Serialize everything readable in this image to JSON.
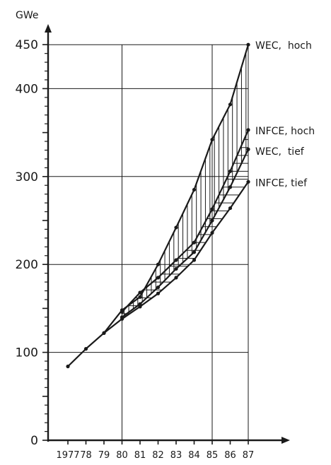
{
  "chart_data": {
    "type": "line",
    "ylabel": "GWe",
    "xlabel": "",
    "x": [
      1977,
      1978,
      1979,
      1980,
      1981,
      1982,
      1983,
      1984,
      1985,
      1986,
      1987
    ],
    "x_tick_labels": [
      "1977",
      "78",
      "79",
      "80",
      "81",
      "82",
      "83",
      "84",
      "85",
      "86",
      "87"
    ],
    "y_ticks": [
      0,
      100,
      200,
      300,
      400,
      450
    ],
    "y_tick_labels": [
      "0",
      "100",
      "200",
      "300",
      "400",
      "450"
    ],
    "ylim": [
      0,
      450
    ],
    "xlim": [
      1977,
      1987
    ],
    "grid_y": [
      100,
      200,
      300,
      400,
      450
    ],
    "grid_x": [
      1980,
      1985,
      1987
    ],
    "series": [
      {
        "name": "WEC,  hoch",
        "x": [
          1977,
          1978,
          1979,
          1980,
          1981,
          1982,
          1983,
          1984,
          1985,
          1986,
          1987
        ],
        "values": [
          84,
          104,
          122,
          148,
          163,
          200,
          242,
          285,
          342,
          382,
          450
        ]
      },
      {
        "name": "INFCE, hoch",
        "x": [
          1980,
          1981,
          1982,
          1983,
          1984,
          1985,
          1986,
          1987
        ],
        "values": [
          146,
          168,
          185,
          205,
          225,
          263,
          306,
          353
        ]
      },
      {
        "name": "WEC,  tief",
        "x": [
          1980,
          1981,
          1982,
          1983,
          1984,
          1985,
          1986,
          1987
        ],
        "values": [
          140,
          155,
          174,
          195,
          214,
          250,
          288,
          331
        ]
      },
      {
        "name": "INFCE, tief",
        "x": [
          1979,
          1980,
          1981,
          1982,
          1983,
          1984,
          1985,
          1986,
          1987
        ],
        "values": [
          122,
          138,
          152,
          167,
          185,
          205,
          236,
          264,
          294
        ]
      }
    ],
    "shading": [
      {
        "between": [
          "WEC,  hoch",
          "WEC,  tief"
        ],
        "style": "vertical-hatch"
      },
      {
        "between": [
          "INFCE, hoch",
          "INFCE, tief"
        ],
        "style": "horizontal-hatch"
      }
    ]
  }
}
